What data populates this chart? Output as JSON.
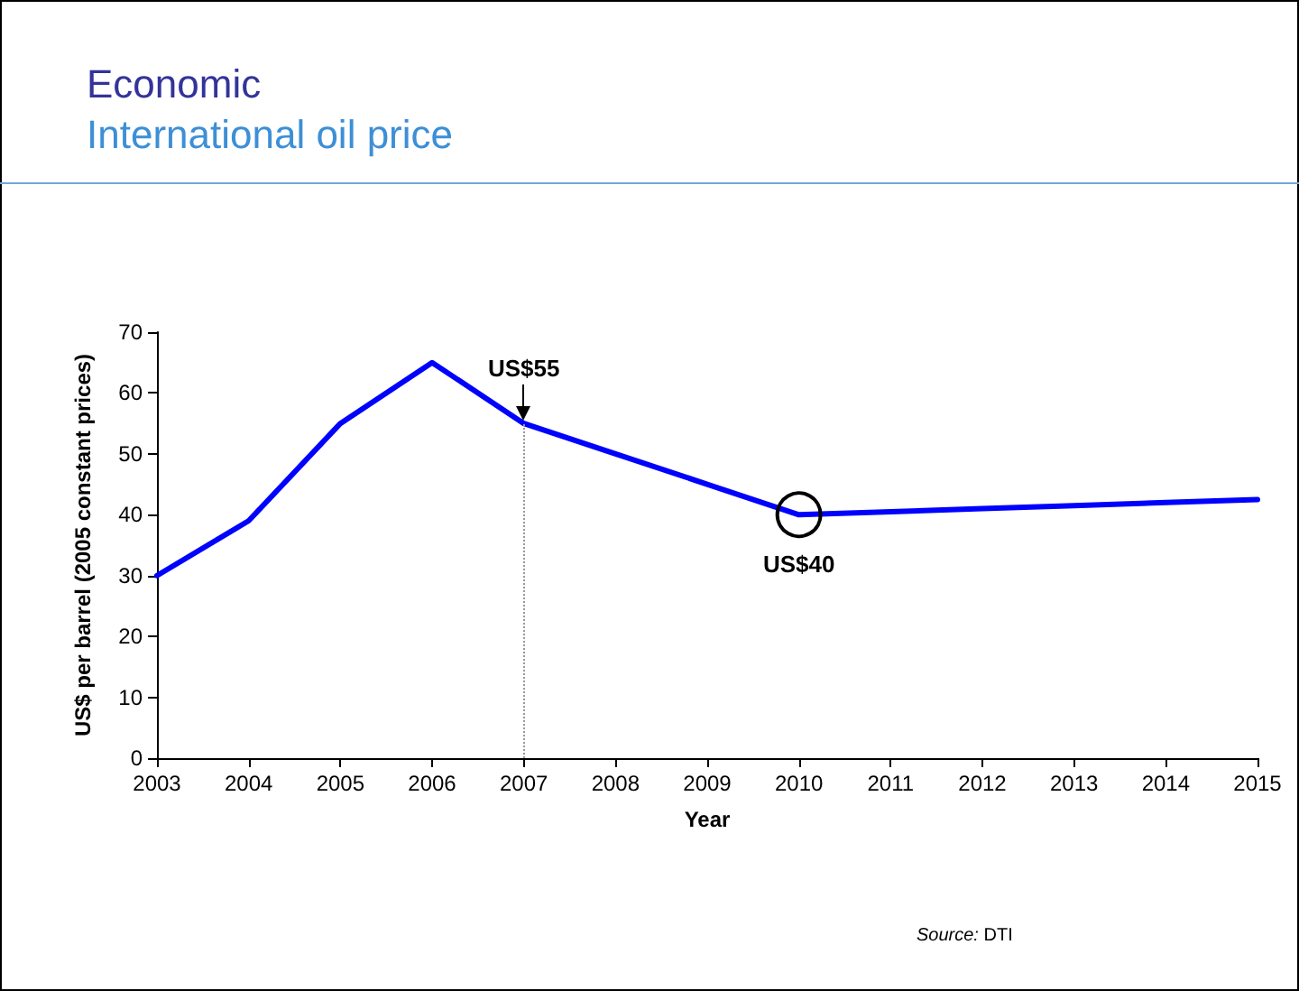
{
  "chart_data": {
    "type": "line",
    "title": "Economic",
    "subtitle": "International oil price",
    "xlabel": "Year",
    "ylabel": "US$ per barrel (2005 constant prices)",
    "x": [
      2003,
      2004,
      2005,
      2006,
      2007,
      2008,
      2009,
      2010,
      2011,
      2012,
      2013,
      2014,
      2015
    ],
    "series": [
      {
        "color": "#0000ff",
        "values": [
          30,
          39,
          55,
          65,
          55,
          50,
          45,
          40,
          40.5,
          41,
          41.5,
          42,
          42.5
        ]
      }
    ],
    "xlim": [
      2003,
      2015
    ],
    "xticks": [
      2003,
      2004,
      2005,
      2006,
      2007,
      2008,
      2009,
      2010,
      2011,
      2012,
      2013,
      2014,
      2015
    ],
    "ylim": [
      0,
      70
    ],
    "yticks": [
      0,
      10,
      20,
      30,
      40,
      50,
      60,
      70
    ],
    "ref_lines": [
      {
        "axis": "x",
        "value": 2007,
        "color": "#999999",
        "line_style": "dotted"
      }
    ],
    "annotations": [
      {
        "text": "US$55",
        "x": 2007,
        "y": 55
      },
      {
        "text": "US$40",
        "x": 2010,
        "y": 40
      },
      "Source: DTI"
    ],
    "grid": false,
    "marker": "none",
    "line_style": "solid"
  }
}
